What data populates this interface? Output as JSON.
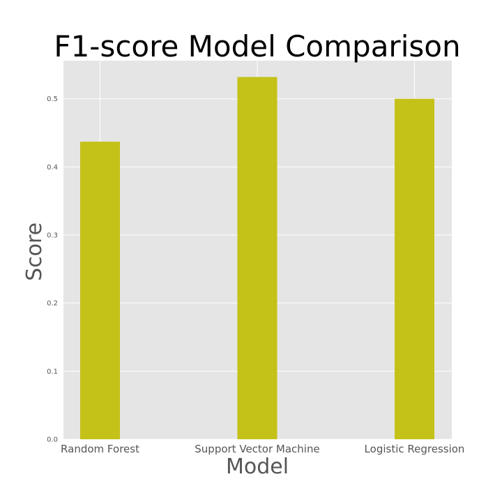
{
  "chart_data": {
    "type": "bar",
    "title": "F1-score Model Comparison",
    "xlabel": "Model",
    "ylabel": "Score",
    "categories": [
      "Random Forest",
      "Support Vector Machine",
      "Logistic Regression"
    ],
    "values": [
      0.437,
      0.532,
      0.5
    ],
    "ylim": [
      0,
      0.556
    ],
    "yticks": [
      "0.0",
      "0.1",
      "0.2",
      "0.3",
      "0.4",
      "0.5"
    ],
    "grid": true,
    "colors": {
      "bar": "#c4c118",
      "plot_background": "#e5e5e5",
      "grid": "#ffffff"
    }
  }
}
